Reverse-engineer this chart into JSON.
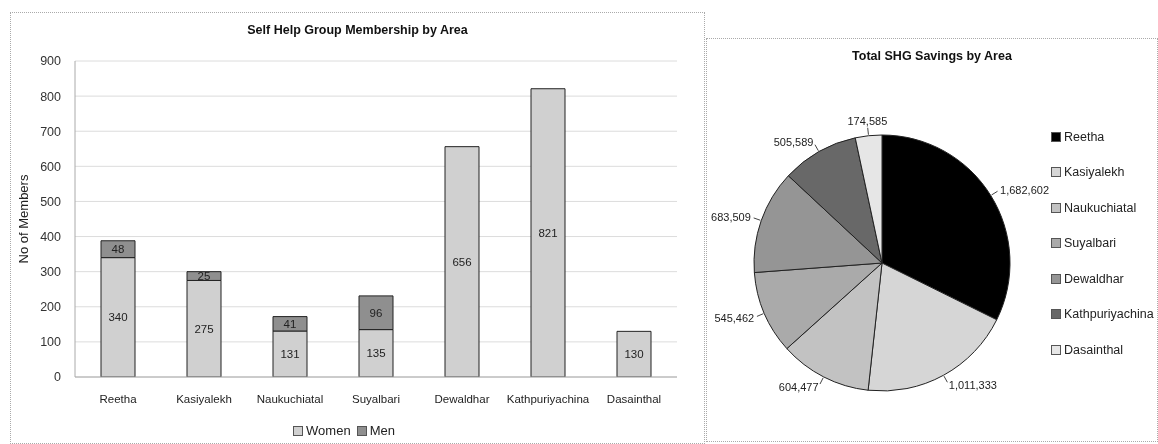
{
  "chart_data": [
    {
      "type": "bar",
      "title": "Self Help Group Membership by Area",
      "ylabel": "No of Members",
      "categories": [
        "Reetha",
        "Kasiyalekh",
        "Naukuchiatal",
        "Suyalbari",
        "Dewaldhar",
        "Kathpuriyachina",
        "Dasainthal"
      ],
      "series": [
        {
          "name": "Women",
          "color": "#d0d0d0",
          "values": [
            340,
            275,
            131,
            135,
            656,
            821,
            130
          ]
        },
        {
          "name": "Men",
          "color": "#8f8f8f",
          "values": [
            48,
            25,
            41,
            96,
            null,
            null,
            null
          ]
        }
      ],
      "stacked": true,
      "ylim": [
        0,
        900
      ],
      "yticks": [
        0,
        100,
        200,
        300,
        400,
        500,
        600,
        700,
        800,
        900
      ],
      "grid": "y",
      "legend": "bottom",
      "data_labels": true
    },
    {
      "type": "pie",
      "title": "Total SHG Savings by Area",
      "categories": [
        "Reetha",
        "Kasiyalekh",
        "Naukuchiatal",
        "Suyalbari",
        "Dewaldhar",
        "Kathpuriyachina",
        "Dasainthal"
      ],
      "values": [
        1682602,
        1011333,
        604477,
        545462,
        683509,
        505589,
        174585
      ],
      "colors": [
        "#000000",
        "#d6d6d6",
        "#c2c2c2",
        "#aaaaaa",
        "#959595",
        "#686868",
        "#e6e6e6"
      ],
      "legend": "right",
      "value_labels": [
        "1,682,602",
        "1,011,333",
        "604,477",
        "545,462",
        "683,509",
        "505,589",
        "174,585"
      ]
    }
  ]
}
